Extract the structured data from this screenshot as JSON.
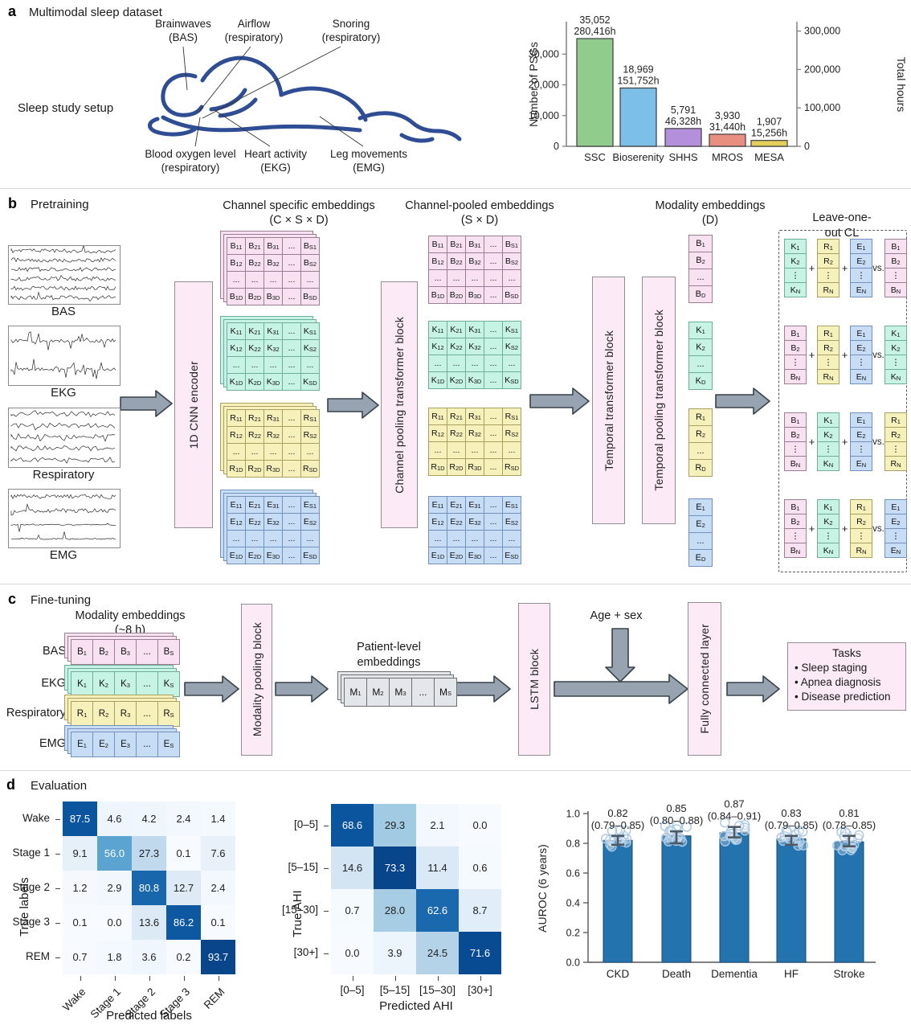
{
  "colors": {
    "arrow_fill": "#97a3b0",
    "arrow_stroke": "#39434b",
    "figure_outline": "#2e4d94",
    "block_pink": "#fcebf7",
    "block_border": "#8f8f8f"
  },
  "panel_a": {
    "tag": "a",
    "title": "Multimodal sleep dataset",
    "setup_label": "Sleep study setup",
    "annotations_top": [
      "Brainwaves\n(BAS)",
      "Airflow\n(respiratory)",
      "Snoring\n(respiratory)"
    ],
    "annotations_bottom": [
      "Blood oxygen level\n(respiratory)",
      "Heart activity\n(EKG)",
      "Leg movements\n(EMG)"
    ]
  },
  "panel_b": {
    "tag": "b",
    "title": "Pretraining",
    "signals": [
      {
        "label": "BAS"
      },
      {
        "label": "EKG"
      },
      {
        "label": "Respiratory"
      },
      {
        "label": "EMG"
      }
    ],
    "cnn_block": "1D CNN encoder",
    "col1_title": "Channel specific embeddings",
    "col1_sub": "(C × S × D)",
    "pool_block": "Channel pooling transformer block",
    "col2_title": "Channel-pooled embeddings",
    "col2_sub": "(S × D)",
    "temporal_block": "Temporal transformer block",
    "temporal_pool_block": "Temporal pooling transformer block",
    "col3_title": "Modality embeddings",
    "col3_sub": "(D)",
    "loo_title": "Leave-one-out CL",
    "modalities": [
      {
        "letter": "B",
        "fill": "#f8e2f1",
        "border": "#9a7f92"
      },
      {
        "letter": "K",
        "fill": "#c6f3e4",
        "border": "#6fae9d"
      },
      {
        "letter": "R",
        "fill": "#f6f0bb",
        "border": "#a8a060"
      },
      {
        "letter": "E",
        "fill": "#c7ddf6",
        "border": "#7291bd"
      }
    ],
    "matrix_subs": [
      [
        "11",
        "21",
        "31",
        "...",
        "S1"
      ],
      [
        "12",
        "22",
        "32",
        "...",
        "S2"
      ],
      [
        "...",
        "...",
        "...",
        "...",
        "..."
      ],
      [
        "1D",
        "2D",
        "3D",
        "...",
        "SD"
      ]
    ],
    "vector_subs": [
      "1",
      "2",
      "...",
      "D"
    ],
    "loo_subs": [
      "1",
      "2",
      "⋮",
      "N"
    ],
    "loo_rows": [
      [
        "K",
        "R",
        "E",
        "B"
      ],
      [
        "B",
        "R",
        "E",
        "K"
      ],
      [
        "B",
        "K",
        "E",
        "R"
      ],
      [
        "B",
        "K",
        "R",
        "E"
      ]
    ],
    "loo_ops": [
      "+",
      "+",
      "vs."
    ]
  },
  "panel_c": {
    "tag": "c",
    "title": "Fine-tuning",
    "col1_title": "Modality embeddings",
    "col1_sub": "(~8 h)",
    "rows": [
      {
        "label": "BAS",
        "letter": "B"
      },
      {
        "label": "EKG",
        "letter": "K"
      },
      {
        "label": "Respiratory",
        "letter": "R"
      },
      {
        "label": "EMG",
        "letter": "E"
      }
    ],
    "row_subs": [
      "1",
      "2",
      "3",
      "...",
      "S"
    ],
    "pool_block": "Modality pooling block",
    "patient_title": "Patient-level\nembeddings",
    "patient_letter": "M",
    "patient_fill": "#e3e7ec",
    "patient_border": "#6f6f6f",
    "lstm_block": "LSTM block",
    "age_sex": "Age + sex",
    "fc_block": "Fully connected layer",
    "tasks_title": "Tasks",
    "tasks": [
      "Sleep staging",
      "Apnea diagnosis",
      "Disease prediction"
    ]
  },
  "panel_d": {
    "tag": "d",
    "title": "Evaluation"
  },
  "chart_data": [
    {
      "id": "psg_counts",
      "type": "bar",
      "categories": [
        "SSC",
        "Bioserenity",
        "SHHS",
        "MROS",
        "MESA"
      ],
      "values": [
        35052,
        18969,
        5791,
        3930,
        1907
      ],
      "hours": [
        280416,
        151752,
        46328,
        31440,
        15256
      ],
      "bar_labels": [
        "35,052\n280,416h",
        "18,969\n151,752h",
        "5,791\n46,328h",
        "3,930\n31,440h",
        "1,907\n15,256h"
      ],
      "colors": [
        "#90cd8d",
        "#7cbfe9",
        "#b48fdc",
        "#e98f82",
        "#e6d05c"
      ],
      "ylabel_left": "Number of PSGs",
      "ylabel_right": "Total hours",
      "yticks_left": [
        "0",
        "10,000",
        "20,000",
        "30,000"
      ],
      "ytick_values_left": [
        0,
        10000,
        20000,
        30000
      ],
      "yticks_right": [
        "0",
        "100,000",
        "200,000",
        "300,000"
      ],
      "ytick_values_right": [
        0,
        100000,
        200000,
        300000
      ],
      "hours_per_psg_axis_ratio": 8,
      "ylim_left": [
        0,
        38000
      ],
      "grid": false
    },
    {
      "id": "sleep_stage_confusion",
      "type": "heatmap",
      "row_labels": [
        "Wake",
        "Stage 1",
        "Stage 2",
        "Stage 3",
        "REM"
      ],
      "col_labels": [
        "Wake",
        "Stage 1",
        "Stage 2",
        "Stage 3",
        "REM"
      ],
      "values": [
        [
          87.5,
          4.6,
          4.2,
          2.4,
          1.4
        ],
        [
          9.1,
          56.0,
          27.3,
          0.1,
          7.6
        ],
        [
          1.2,
          2.9,
          80.8,
          12.7,
          2.4
        ],
        [
          0.1,
          0.0,
          13.6,
          86.2,
          0.1
        ],
        [
          0.7,
          1.8,
          3.6,
          0.2,
          93.7
        ]
      ],
      "xlabel": "Predicted labels",
      "ylabel": "True labels",
      "colormap": "Blues"
    },
    {
      "id": "ahi_confusion",
      "type": "heatmap",
      "row_labels": [
        "[0–5]",
        "[5–15]",
        "[15–30]",
        "[30+]"
      ],
      "col_labels": [
        "[0–5]",
        "[5–15]",
        "[15–30]",
        "[30+]"
      ],
      "values": [
        [
          68.6,
          29.3,
          2.1,
          0.0
        ],
        [
          14.6,
          73.3,
          11.4,
          0.6
        ],
        [
          0.7,
          28.0,
          62.6,
          8.7
        ],
        [
          0.0,
          3.9,
          24.5,
          71.6
        ]
      ],
      "xlabel": "Predicted AHI",
      "ylabel": "True AHI",
      "colormap": "Blues"
    },
    {
      "id": "auroc_6yr",
      "type": "bar",
      "categories": [
        "CKD",
        "Death",
        "Dementia",
        "HF",
        "Stroke"
      ],
      "values": [
        0.82,
        0.85,
        0.87,
        0.83,
        0.81
      ],
      "ci": [
        [
          0.79,
          0.85
        ],
        [
          0.8,
          0.88
        ],
        [
          0.84,
          0.91
        ],
        [
          0.79,
          0.85
        ],
        [
          0.78,
          0.85
        ]
      ],
      "bar_labels": [
        "0.82\n(0.79–0.85)",
        "0.85\n(0.80–0.88)",
        "0.87\n(0.84–0.91)",
        "0.83\n(0.79–0.85)",
        "0.81\n(0.78–0.85)"
      ],
      "ylabel": "AUROC (6 years)",
      "yticks": [
        "0.0",
        "0.2",
        "0.4",
        "0.6",
        "0.8",
        "1.0"
      ],
      "ytick_values": [
        0,
        0.2,
        0.4,
        0.6,
        0.8,
        1.0
      ],
      "ylim": [
        0,
        1.0
      ],
      "bar_color": "#2273ae",
      "grid": false
    }
  ]
}
